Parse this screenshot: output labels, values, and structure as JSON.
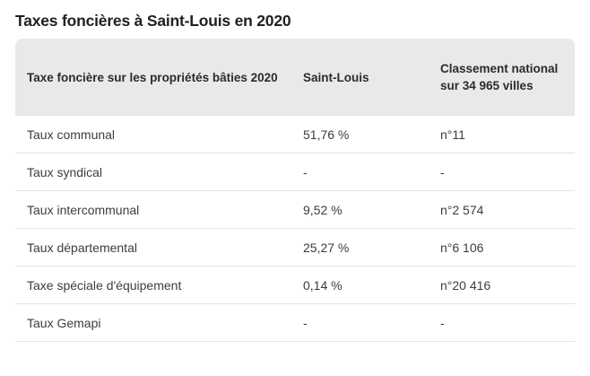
{
  "page_title": "Taxes foncières à Saint-Louis en 2020",
  "chart_data": {
    "type": "table",
    "title": "Taxes foncières à Saint-Louis en 2020",
    "columns": [
      "Taxe foncière sur les propriétés bâties 2020",
      "Saint-Louis",
      "Classement national sur 34 965 villes"
    ],
    "rows": [
      [
        "Taux communal",
        "51,76 %",
        "n°11"
      ],
      [
        "Taux syndical",
        "-",
        "-"
      ],
      [
        "Taux intercommunal",
        "9,52 %",
        "n°2 574"
      ],
      [
        "Taux départemental",
        "25,27 %",
        "n°6 106"
      ],
      [
        "Taxe spéciale d'équipement",
        "0,14 %",
        "n°20 416"
      ],
      [
        "Taux Gemapi",
        "-",
        "-"
      ]
    ],
    "notes": {
      "ranking_total_cities": "34 965",
      "city": "Saint-Louis",
      "year": "2020"
    }
  },
  "colors": {
    "page_background": "#ffffff",
    "header_background": "#e9e9e9",
    "title_text": "#212121",
    "header_text": "#2b2b2b",
    "body_text": "#3d3d3d",
    "row_divider": "#e4e4e4"
  }
}
